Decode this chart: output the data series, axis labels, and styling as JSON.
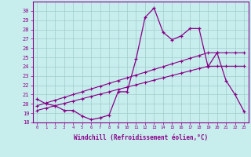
{
  "xlabel": "Windchill (Refroidissement éolien,°C)",
  "x_values": [
    0,
    1,
    2,
    3,
    4,
    5,
    6,
    7,
    8,
    9,
    10,
    11,
    12,
    13,
    14,
    15,
    16,
    17,
    18,
    19,
    20,
    21,
    22,
    23
  ],
  "main_line": [
    20.5,
    20.0,
    19.8,
    19.3,
    19.3,
    18.7,
    18.3,
    18.5,
    18.8,
    21.3,
    21.3,
    24.8,
    29.3,
    30.3,
    27.7,
    26.9,
    27.3,
    28.1,
    28.1,
    24.0,
    25.5,
    22.5,
    21.0,
    19.2
  ],
  "trend_upper": [
    19.8,
    20.1,
    20.4,
    20.7,
    21.0,
    21.3,
    21.6,
    21.9,
    22.2,
    22.5,
    22.8,
    23.1,
    23.4,
    23.7,
    24.0,
    24.3,
    24.6,
    24.9,
    25.2,
    25.5,
    25.5,
    25.5,
    25.5,
    25.5
  ],
  "trend_lower": [
    19.3,
    19.55,
    19.8,
    20.05,
    20.3,
    20.55,
    20.8,
    21.05,
    21.3,
    21.55,
    21.8,
    22.05,
    22.3,
    22.55,
    22.8,
    23.05,
    23.3,
    23.55,
    23.8,
    24.05,
    24.05,
    24.05,
    24.05,
    24.05
  ],
  "color": "#880088",
  "bg_color": "#c8eded",
  "grid_color": "#a0cccc",
  "ylim": [
    18,
    31
  ],
  "yticks": [
    18,
    19,
    20,
    21,
    22,
    23,
    24,
    25,
    26,
    27,
    28,
    29,
    30
  ],
  "xlim": [
    -0.5,
    23.5
  ],
  "xticks": [
    0,
    1,
    2,
    3,
    4,
    5,
    6,
    7,
    8,
    9,
    10,
    11,
    12,
    13,
    14,
    15,
    16,
    17,
    18,
    19,
    20,
    21,
    22,
    23
  ]
}
